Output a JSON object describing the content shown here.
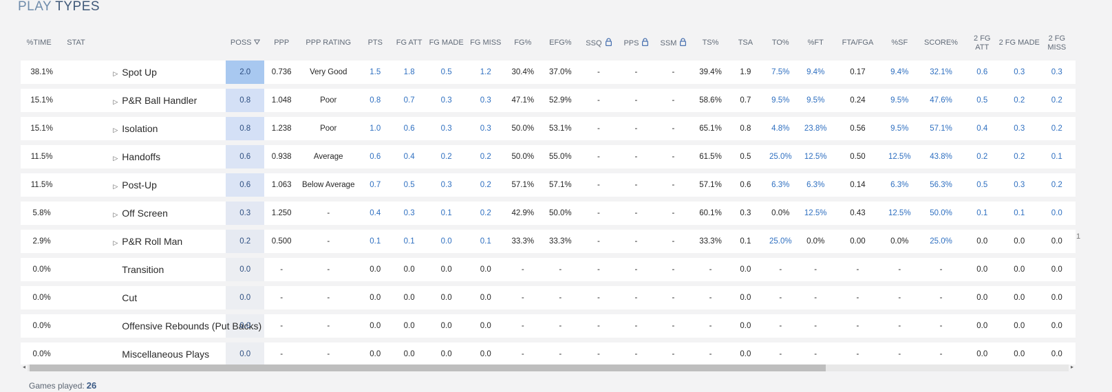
{
  "page_title": {
    "part1": "PLAY",
    "part2": "TYPES"
  },
  "columns": [
    {
      "key": "time",
      "label": "%TIME"
    },
    {
      "key": "stat",
      "label": "STAT"
    },
    {
      "key": "poss",
      "label": "POSS",
      "sorted": true
    },
    {
      "key": "ppp",
      "label": "PPP"
    },
    {
      "key": "ppp_rating",
      "label": "PPP RATING"
    },
    {
      "key": "pts",
      "label": "PTS",
      "link": true
    },
    {
      "key": "fg_att",
      "label": "FG ATT",
      "link": true
    },
    {
      "key": "fg_made",
      "label": "FG MADE",
      "link": true
    },
    {
      "key": "fg_miss",
      "label": "FG MISS",
      "link": true
    },
    {
      "key": "fg_pct",
      "label": "FG%"
    },
    {
      "key": "efg_pct",
      "label": "EFG%"
    },
    {
      "key": "ssq",
      "label": "SSQ",
      "locked": true
    },
    {
      "key": "pps",
      "label": "PPS",
      "locked": true
    },
    {
      "key": "ssm",
      "label": "SSM",
      "locked": true
    },
    {
      "key": "ts_pct",
      "label": "TS%"
    },
    {
      "key": "tsa",
      "label": "TSA"
    },
    {
      "key": "to_pct",
      "label": "TO%",
      "link": true
    },
    {
      "key": "ft_pct",
      "label": "%FT",
      "link": true
    },
    {
      "key": "fta_fga",
      "label": "FTA/FGA"
    },
    {
      "key": "sf_pct",
      "label": "%SF",
      "link": true
    },
    {
      "key": "score_pct",
      "label": "SCORE%",
      "link": true
    },
    {
      "key": "fg2_att",
      "label": "2 FG ATT",
      "link": true
    },
    {
      "key": "fg2_made",
      "label": "2 FG MADE",
      "link": true
    },
    {
      "key": "fg2_miss",
      "label": "2 FG MISS",
      "link": true
    },
    {
      "key": "extra",
      "label": ""
    }
  ],
  "rows": [
    {
      "time": "38.1%",
      "stat": "Spot Up",
      "expandable": true,
      "poss": "2.0",
      "poss_shade": "#a8c8f0",
      "ppp": "0.736",
      "ppp_rating": "Very Good",
      "pts": "1.5",
      "fg_att": "1.8",
      "fg_made": "0.5",
      "fg_miss": "1.2",
      "fg_pct": "30.4%",
      "efg_pct": "37.0%",
      "ssq": "-",
      "pps": "-",
      "ssm": "-",
      "ts_pct": "39.4%",
      "tsa": "1.9",
      "to_pct": "7.5%",
      "ft_pct": "9.4%",
      "fta_fga": "0.17",
      "sf_pct": "9.4%",
      "score_pct": "32.1%",
      "fg2_att": "0.6",
      "fg2_made": "0.3",
      "fg2_miss": "0.3",
      "extra": ""
    },
    {
      "time": "15.1%",
      "stat": "P&R Ball Handler",
      "expandable": true,
      "poss": "0.8",
      "poss_shade": "#d4e0f6",
      "ppp": "1.048",
      "ppp_rating": "Poor",
      "pts": "0.8",
      "fg_att": "0.7",
      "fg_made": "0.3",
      "fg_miss": "0.3",
      "fg_pct": "47.1%",
      "efg_pct": "52.9%",
      "ssq": "-",
      "pps": "-",
      "ssm": "-",
      "ts_pct": "58.6%",
      "tsa": "0.7",
      "to_pct": "9.5%",
      "ft_pct": "9.5%",
      "fta_fga": "0.24",
      "sf_pct": "9.5%",
      "score_pct": "47.6%",
      "fg2_att": "0.5",
      "fg2_made": "0.2",
      "fg2_miss": "0.2",
      "extra": ""
    },
    {
      "time": "15.1%",
      "stat": "Isolation",
      "expandable": true,
      "poss": "0.8",
      "poss_shade": "#d4e0f6",
      "ppp": "1.238",
      "ppp_rating": "Poor",
      "pts": "1.0",
      "fg_att": "0.6",
      "fg_made": "0.3",
      "fg_miss": "0.3",
      "fg_pct": "50.0%",
      "efg_pct": "53.1%",
      "ssq": "-",
      "pps": "-",
      "ssm": "-",
      "ts_pct": "65.1%",
      "tsa": "0.8",
      "to_pct": "4.8%",
      "ft_pct": "23.8%",
      "fta_fga": "0.56",
      "sf_pct": "9.5%",
      "score_pct": "57.1%",
      "fg2_att": "0.4",
      "fg2_made": "0.3",
      "fg2_miss": "0.2",
      "extra": ""
    },
    {
      "time": "11.5%",
      "stat": "Handoffs",
      "expandable": true,
      "poss": "0.6",
      "poss_shade": "#dbe4f5",
      "ppp": "0.938",
      "ppp_rating": "Average",
      "pts": "0.6",
      "fg_att": "0.4",
      "fg_made": "0.2",
      "fg_miss": "0.2",
      "fg_pct": "50.0%",
      "efg_pct": "55.0%",
      "ssq": "-",
      "pps": "-",
      "ssm": "-",
      "ts_pct": "61.5%",
      "tsa": "0.5",
      "to_pct": "25.0%",
      "ft_pct": "12.5%",
      "fta_fga": "0.50",
      "sf_pct": "12.5%",
      "score_pct": "43.8%",
      "fg2_att": "0.2",
      "fg2_made": "0.2",
      "fg2_miss": "0.1",
      "extra": ""
    },
    {
      "time": "11.5%",
      "stat": "Post-Up",
      "expandable": true,
      "poss": "0.6",
      "poss_shade": "#dbe4f5",
      "ppp": "1.063",
      "ppp_rating": "Below Average",
      "pts": "0.7",
      "fg_att": "0.5",
      "fg_made": "0.3",
      "fg_miss": "0.2",
      "fg_pct": "57.1%",
      "efg_pct": "57.1%",
      "ssq": "-",
      "pps": "-",
      "ssm": "-",
      "ts_pct": "57.1%",
      "tsa": "0.6",
      "to_pct": "6.3%",
      "ft_pct": "6.3%",
      "fta_fga": "0.14",
      "sf_pct": "6.3%",
      "score_pct": "56.3%",
      "fg2_att": "0.5",
      "fg2_made": "0.3",
      "fg2_miss": "0.2",
      "extra": ""
    },
    {
      "time": "5.8%",
      "stat": "Off Screen",
      "expandable": true,
      "poss": "0.3",
      "poss_shade": "#e3e8f3",
      "ppp": "1.250",
      "ppp_rating": "-",
      "pts": "0.4",
      "fg_att": "0.3",
      "fg_made": "0.1",
      "fg_miss": "0.2",
      "fg_pct": "42.9%",
      "efg_pct": "50.0%",
      "ssq": "-",
      "pps": "-",
      "ssm": "-",
      "ts_pct": "60.1%",
      "tsa": "0.3",
      "to_pct": "0.0%",
      "ft_pct": "12.5%",
      "fta_fga": "0.43",
      "sf_pct": "12.5%",
      "score_pct": "50.0%",
      "fg2_att": "0.1",
      "fg2_made": "0.1",
      "fg2_miss": "0.0",
      "extra": ""
    },
    {
      "time": "2.9%",
      "stat": "P&R Roll Man",
      "expandable": true,
      "poss": "0.2",
      "poss_shade": "#e6eaf2",
      "ppp": "0.500",
      "ppp_rating": "-",
      "pts": "0.1",
      "fg_att": "0.1",
      "fg_made": "0.0",
      "fg_miss": "0.1",
      "fg_pct": "33.3%",
      "efg_pct": "33.3%",
      "ssq": "-",
      "pps": "-",
      "ssm": "-",
      "ts_pct": "33.3%",
      "tsa": "0.1",
      "to_pct": "25.0%",
      "ft_pct": "0.0%",
      "fta_fga": "0.00",
      "sf_pct": "0.0%",
      "score_pct": "25.0%",
      "fg2_att": "0.0",
      "fg2_made": "0.0",
      "fg2_miss": "0.0",
      "extra": "1"
    },
    {
      "time": "0.0%",
      "stat": "Transition",
      "expandable": false,
      "poss": "0.0",
      "poss_shade": "#eceef2",
      "ppp": "-",
      "ppp_rating": "-",
      "pts": "0.0",
      "fg_att": "0.0",
      "fg_made": "0.0",
      "fg_miss": "0.0",
      "fg_pct": "-",
      "efg_pct": "-",
      "ssq": "-",
      "pps": "-",
      "ssm": "-",
      "ts_pct": "-",
      "tsa": "0.0",
      "to_pct": "-",
      "ft_pct": "-",
      "fta_fga": "-",
      "sf_pct": "-",
      "score_pct": "-",
      "fg2_att": "0.0",
      "fg2_made": "0.0",
      "fg2_miss": "0.0",
      "extra": ""
    },
    {
      "time": "0.0%",
      "stat": "Cut",
      "expandable": false,
      "poss": "0.0",
      "poss_shade": "#eceef2",
      "ppp": "-",
      "ppp_rating": "-",
      "pts": "0.0",
      "fg_att": "0.0",
      "fg_made": "0.0",
      "fg_miss": "0.0",
      "fg_pct": "-",
      "efg_pct": "-",
      "ssq": "-",
      "pps": "-",
      "ssm": "-",
      "ts_pct": "-",
      "tsa": "0.0",
      "to_pct": "-",
      "ft_pct": "-",
      "fta_fga": "-",
      "sf_pct": "-",
      "score_pct": "-",
      "fg2_att": "0.0",
      "fg2_made": "0.0",
      "fg2_miss": "0.0",
      "extra": ""
    },
    {
      "time": "0.0%",
      "stat": "Offensive Rebounds (Put Backs)",
      "expandable": false,
      "poss": "0.0",
      "poss_shade": "#eceef2",
      "ppp": "-",
      "ppp_rating": "-",
      "pts": "0.0",
      "fg_att": "0.0",
      "fg_made": "0.0",
      "fg_miss": "0.0",
      "fg_pct": "-",
      "efg_pct": "-",
      "ssq": "-",
      "pps": "-",
      "ssm": "-",
      "ts_pct": "-",
      "tsa": "0.0",
      "to_pct": "-",
      "ft_pct": "-",
      "fta_fga": "-",
      "sf_pct": "-",
      "score_pct": "-",
      "fg2_att": "0.0",
      "fg2_made": "0.0",
      "fg2_miss": "0.0",
      "extra": ""
    },
    {
      "time": "0.0%",
      "stat": "Miscellaneous Plays",
      "expandable": false,
      "poss": "0.0",
      "poss_shade": "#eceef2",
      "ppp": "-",
      "ppp_rating": "-",
      "pts": "0.0",
      "fg_att": "0.0",
      "fg_made": "0.0",
      "fg_miss": "0.0",
      "fg_pct": "-",
      "efg_pct": "-",
      "ssq": "-",
      "pps": "-",
      "ssm": "-",
      "ts_pct": "-",
      "tsa": "0.0",
      "to_pct": "-",
      "ft_pct": "-",
      "fta_fga": "-",
      "sf_pct": "-",
      "score_pct": "-",
      "fg2_att": "0.0",
      "fg2_made": "0.0",
      "fg2_miss": "0.0",
      "extra": ""
    }
  ],
  "scrollbar": {
    "left_arrow": "◂",
    "right_arrow": "▸"
  },
  "footer": {
    "label": "Games played:",
    "value": "26"
  },
  "colors": {
    "link": "#2e6fc0",
    "title_light": "#6f8cab",
    "title_dark": "#3f5878"
  },
  "icons": {
    "lock": "lock-icon",
    "sort": "sort-down-icon",
    "expand": "caret-right-icon"
  }
}
